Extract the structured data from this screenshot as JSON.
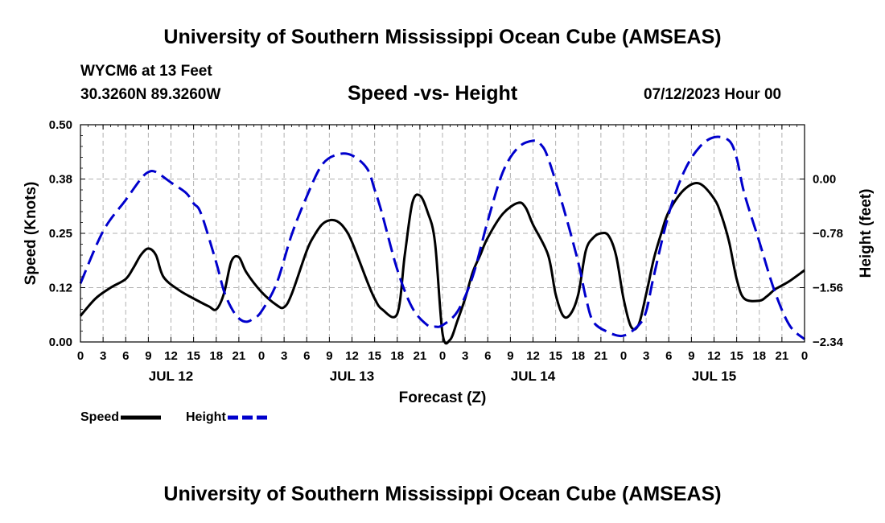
{
  "header": {
    "title": "University of Southern Mississippi Ocean Cube (AMSEAS)",
    "station": "WYCM6 at 13 Feet",
    "coordinates": "30.3260N  89.3260W",
    "subtitle": "Speed -vs- Height",
    "datetime": "07/12/2023 Hour 00"
  },
  "footer": {
    "title": "University of Southern Mississippi Ocean Cube (AMSEAS)"
  },
  "chart_data": {
    "type": "line",
    "title": "Speed -vs- Height",
    "xlabel": "Forecast (Z)",
    "ylabel_left": "Speed (Knots)",
    "ylabel_right": "Height (feet)",
    "x_unit": "hours from 07/12/2023 00Z",
    "xlim": [
      0,
      96
    ],
    "x_ticks": [
      0,
      3,
      6,
      9,
      12,
      15,
      18,
      21,
      24,
      27,
      30,
      33,
      36,
      39,
      42,
      45,
      48,
      51,
      54,
      57,
      60,
      63,
      66,
      69,
      72,
      75,
      78,
      81,
      84,
      87,
      90,
      93,
      96
    ],
    "x_tick_labels": [
      "0",
      "3",
      "6",
      "9",
      "12",
      "15",
      "18",
      "21",
      "0",
      "3",
      "6",
      "9",
      "12",
      "15",
      "18",
      "21",
      "0",
      "3",
      "6",
      "9",
      "12",
      "15",
      "18",
      "21",
      "0",
      "3",
      "6",
      "9",
      "12",
      "15",
      "18",
      "21",
      "0"
    ],
    "day_labels": [
      {
        "label": "JUL 12",
        "hour": 12
      },
      {
        "label": "JUL 13",
        "hour": 36
      },
      {
        "label": "JUL 14",
        "hour": 60
      },
      {
        "label": "JUL 15",
        "hour": 84
      }
    ],
    "ylim_left": [
      0,
      0.5
    ],
    "y_ticks_left": [
      0.0,
      0.125,
      0.25,
      0.375,
      0.5
    ],
    "y_tick_labels_left": [
      "0.00",
      "0.12",
      "0.25",
      "0.38",
      "0.50"
    ],
    "ylim_right": [
      -2.34,
      0.78
    ],
    "y_ticks_right": [
      -2.34,
      -1.56,
      -0.78,
      0.0
    ],
    "y_tick_labels_right": [
      "−2.34",
      "−1.56",
      "−0.78",
      "0.00"
    ],
    "grid": true,
    "legend_position": "bottom-left",
    "series": [
      {
        "name": "Speed",
        "axis": "left",
        "color": "#000000",
        "style": "solid",
        "x": [
          0,
          2,
          4,
          6,
          7,
          8,
          9,
          10,
          11,
          13,
          15,
          17,
          18,
          19,
          20,
          21,
          22,
          24,
          26,
          27,
          28,
          30,
          31,
          32,
          33,
          34,
          35,
          36,
          38,
          39,
          40,
          42,
          43,
          44,
          45,
          46,
          47,
          48,
          49,
          50,
          51,
          52,
          53,
          54,
          56,
          58,
          59,
          60,
          62,
          63,
          64,
          65,
          66,
          67,
          68,
          69,
          70,
          71,
          72,
          73,
          74,
          75,
          76,
          77,
          78,
          80,
          82,
          84,
          85,
          86,
          87,
          88,
          90,
          91,
          92,
          93,
          94,
          96
        ],
        "values": [
          0.06,
          0.1,
          0.125,
          0.145,
          0.17,
          0.2,
          0.215,
          0.2,
          0.15,
          0.12,
          0.1,
          0.082,
          0.075,
          0.11,
          0.185,
          0.195,
          0.16,
          0.115,
          0.085,
          0.08,
          0.11,
          0.21,
          0.245,
          0.27,
          0.28,
          0.278,
          0.262,
          0.23,
          0.14,
          0.1,
          0.075,
          0.065,
          0.2,
          0.32,
          0.337,
          0.3,
          0.23,
          0.02,
          0.005,
          0.05,
          0.1,
          0.16,
          0.2,
          0.24,
          0.295,
          0.32,
          0.31,
          0.27,
          0.2,
          0.11,
          0.06,
          0.065,
          0.11,
          0.21,
          0.24,
          0.25,
          0.245,
          0.2,
          0.1,
          0.035,
          0.04,
          0.11,
          0.19,
          0.25,
          0.3,
          0.35,
          0.365,
          0.33,
          0.29,
          0.23,
          0.145,
          0.1,
          0.095,
          0.105,
          0.12,
          0.13,
          0.14,
          0.165
        ]
      },
      {
        "name": "Height",
        "axis": "right",
        "color": "#0000cc",
        "style": "dashed",
        "x": [
          0,
          3,
          6,
          8,
          9,
          10,
          12,
          14,
          15,
          16,
          18,
          19,
          20,
          21,
          22,
          23,
          24,
          26,
          28,
          30,
          32,
          34,
          36,
          38,
          39,
          40,
          42,
          44,
          46,
          47,
          48,
          50,
          52,
          54,
          56,
          58,
          60,
          61,
          62,
          64,
          66,
          67,
          68,
          70,
          72,
          74,
          75,
          76,
          78,
          80,
          82,
          84,
          86,
          87,
          88,
          90,
          92,
          94,
          96
        ],
        "values": [
          -1.5,
          -0.75,
          -0.3,
          0.0,
          0.1,
          0.1,
          -0.05,
          -0.2,
          -0.35,
          -0.5,
          -1.2,
          -1.6,
          -1.85,
          -2.0,
          -2.05,
          -2.0,
          -1.9,
          -1.5,
          -0.8,
          -0.25,
          0.2,
          0.35,
          0.34,
          0.15,
          -0.15,
          -0.5,
          -1.3,
          -1.85,
          -2.1,
          -2.12,
          -2.1,
          -1.9,
          -1.4,
          -0.6,
          0.1,
          0.45,
          0.55,
          0.5,
          0.3,
          -0.4,
          -1.2,
          -1.7,
          -2.05,
          -2.2,
          -2.25,
          -2.1,
          -1.9,
          -1.4,
          -0.5,
          0.1,
          0.45,
          0.6,
          0.55,
          0.3,
          -0.2,
          -0.9,
          -1.6,
          -2.1,
          -2.3
        ]
      }
    ]
  }
}
